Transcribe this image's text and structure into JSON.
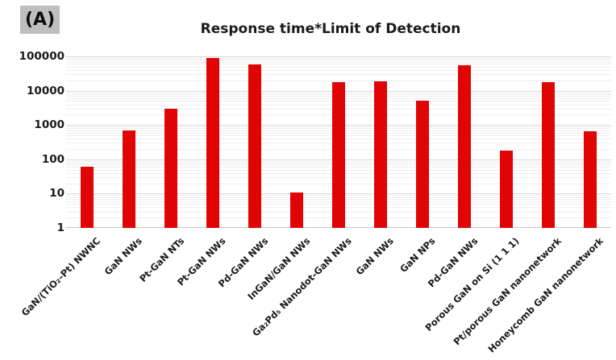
{
  "panel_label": "(A)",
  "chart_data": {
    "type": "bar",
    "title": "Response time*Limit of Detection",
    "categories": [
      "GaN/(TiO₂–Pt) NWNC",
      "GaN NWs",
      "Pt-GaN NTs",
      "Pt-GaN NWs",
      "Pd-GaN NWs",
      "InGaN/GaN NWs",
      "Ga₂Pd₅ Nanodot-GaN NWs",
      "GaN NWs",
      "GaN NPs",
      "Pd-GaN NWs",
      "Porous GaN on Si (1 1 1)",
      "Pt/porous GaN nanonetwork",
      "Honeycomb GaN nanonetwork"
    ],
    "values": [
      60,
      700,
      3000,
      90000,
      57000,
      11,
      18000,
      19000,
      5200,
      55000,
      180,
      17500,
      650
    ],
    "xlabel": "",
    "ylabel": "",
    "y_scale": "log10",
    "ylim": [
      1,
      100000
    ],
    "y_ticks": [
      "1",
      "10",
      "100",
      "1000",
      "10000",
      "100000"
    ],
    "grid": "horizontal major and log-minor gridlines",
    "legend": "none",
    "bar_color": "#e00404"
  },
  "colors": {
    "bar": "#e00404",
    "grid_major": "#d8d8d8",
    "grid_minor": "#efefef",
    "axis_line": "#c6c6c6",
    "panel_label_bg": "#bfbfbf",
    "text": "#1a1a1a",
    "background": "#ffffff"
  }
}
